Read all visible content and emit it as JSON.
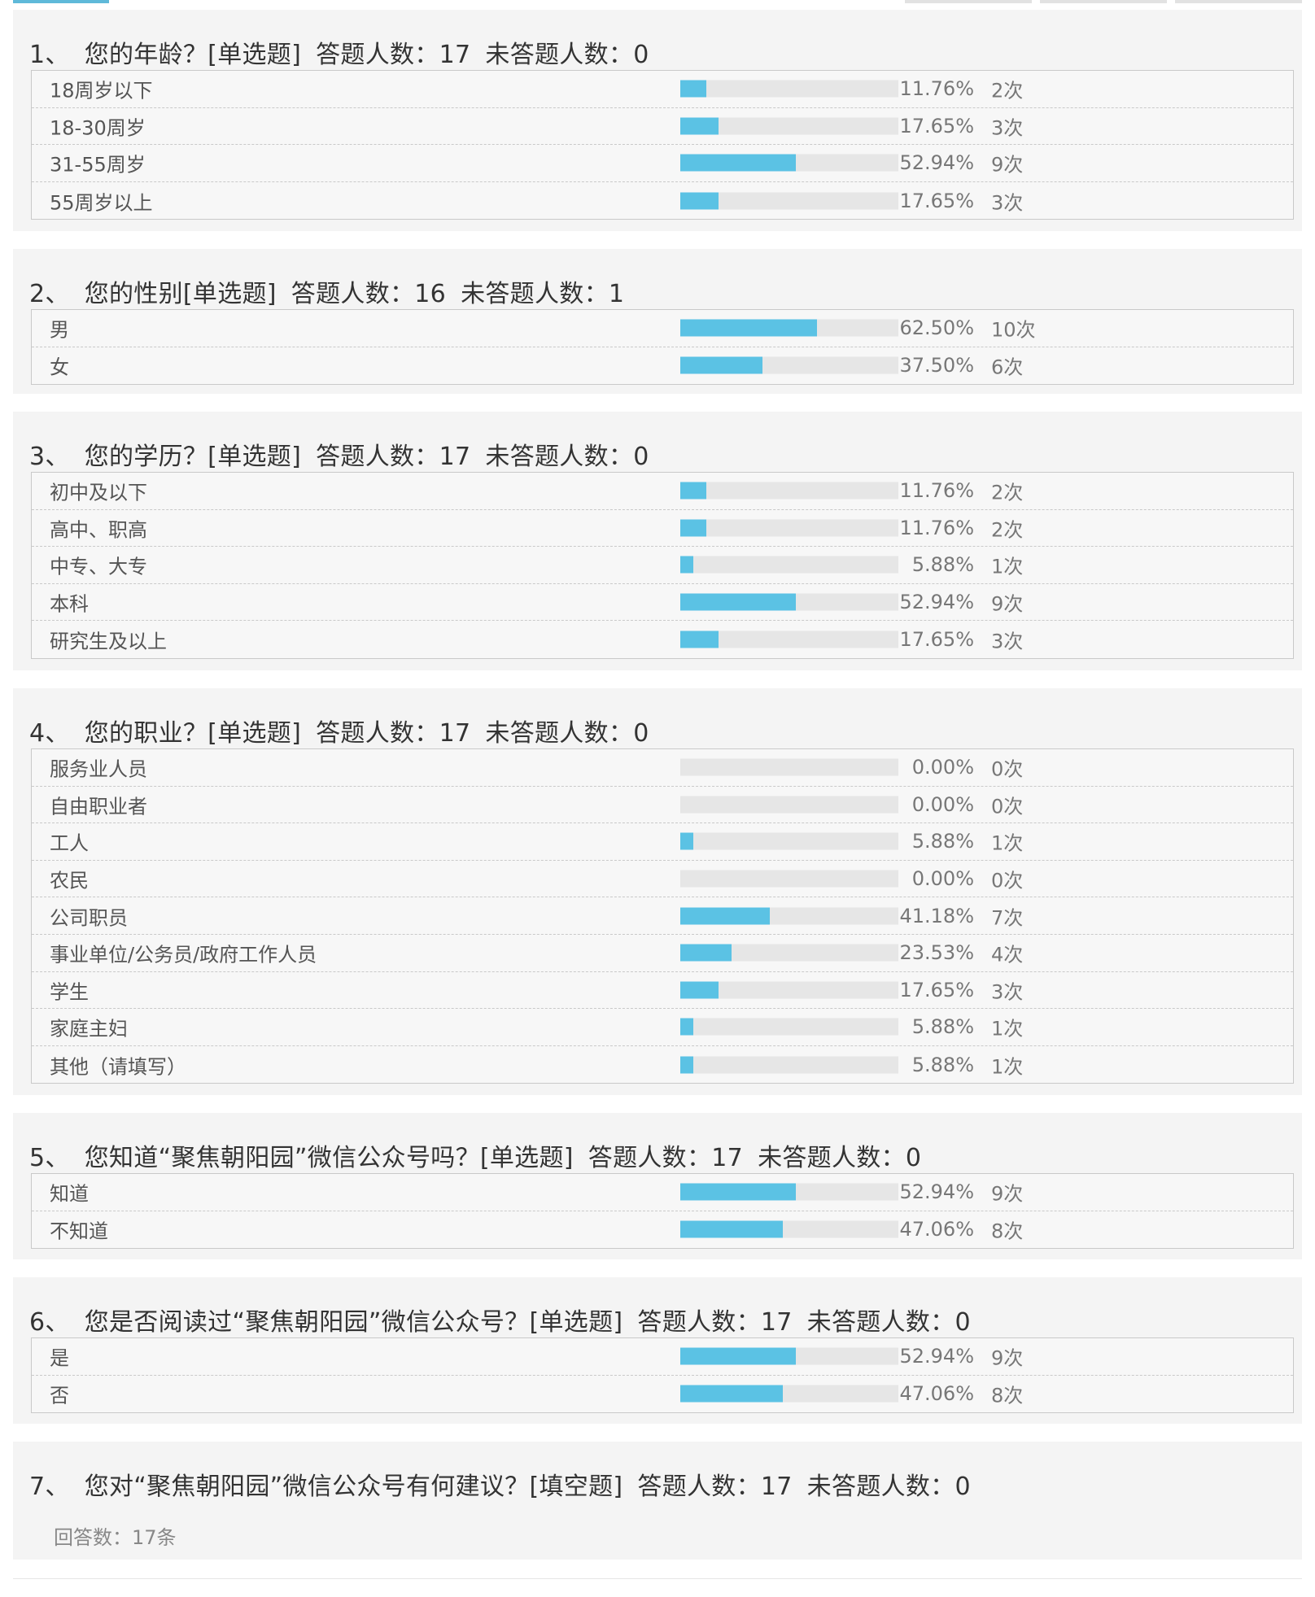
{
  "colors": {
    "bar": "#5bc2e4",
    "track": "#e6e6e6",
    "panel": "#f4f4f4"
  },
  "questions": [
    {
      "number": "1、",
      "text": "您的年龄？[单选题]",
      "answered": "答题人数：17",
      "unanswered": "未答题人数：0",
      "options": [
        {
          "label": "18周岁以下",
          "percent": "11.76%",
          "count": "2次",
          "ratio": 0.1176
        },
        {
          "label": "18-30周岁",
          "percent": "17.65%",
          "count": "3次",
          "ratio": 0.1765
        },
        {
          "label": "31-55周岁",
          "percent": "52.94%",
          "count": "9次",
          "ratio": 0.5294
        },
        {
          "label": "55周岁以上",
          "percent": "17.65%",
          "count": "3次",
          "ratio": 0.1765
        }
      ]
    },
    {
      "number": "2、",
      "text": "您的性别[单选题]",
      "answered": "答题人数：16",
      "unanswered": "未答题人数：1",
      "options": [
        {
          "label": "男",
          "percent": "62.50%",
          "count": "10次",
          "ratio": 0.625
        },
        {
          "label": "女",
          "percent": "37.50%",
          "count": "6次",
          "ratio": 0.375
        }
      ]
    },
    {
      "number": "3、",
      "text": "您的学历？[单选题]",
      "answered": "答题人数：17",
      "unanswered": "未答题人数：0",
      "options": [
        {
          "label": "初中及以下",
          "percent": "11.76%",
          "count": "2次",
          "ratio": 0.1176
        },
        {
          "label": "高中、职高",
          "percent": "11.76%",
          "count": "2次",
          "ratio": 0.1176
        },
        {
          "label": "中专、大专",
          "percent": "5.88%",
          "count": "1次",
          "ratio": 0.0588
        },
        {
          "label": "本科",
          "percent": "52.94%",
          "count": "9次",
          "ratio": 0.5294
        },
        {
          "label": "研究生及以上",
          "percent": "17.65%",
          "count": "3次",
          "ratio": 0.1765
        }
      ]
    },
    {
      "number": "4、",
      "text": "您的职业？[单选题]",
      "answered": "答题人数：17",
      "unanswered": "未答题人数：0",
      "options": [
        {
          "label": "服务业人员",
          "percent": "0.00%",
          "count": "0次",
          "ratio": 0
        },
        {
          "label": "自由职业者",
          "percent": "0.00%",
          "count": "0次",
          "ratio": 0
        },
        {
          "label": "工人",
          "percent": "5.88%",
          "count": "1次",
          "ratio": 0.0588
        },
        {
          "label": "农民",
          "percent": "0.00%",
          "count": "0次",
          "ratio": 0
        },
        {
          "label": "公司职员",
          "percent": "41.18%",
          "count": "7次",
          "ratio": 0.4118
        },
        {
          "label": "事业单位/公务员/政府工作人员",
          "percent": "23.53%",
          "count": "4次",
          "ratio": 0.2353
        },
        {
          "label": "学生",
          "percent": "17.65%",
          "count": "3次",
          "ratio": 0.1765
        },
        {
          "label": "家庭主妇",
          "percent": "5.88%",
          "count": "1次",
          "ratio": 0.0588
        },
        {
          "label": "其他（请填写）",
          "percent": "5.88%",
          "count": "1次",
          "ratio": 0.0588
        }
      ]
    },
    {
      "number": "5、",
      "text": "您知道“聚焦朝阳园”微信公众号吗？[单选题]",
      "answered": "答题人数：17",
      "unanswered": "未答题人数：0",
      "options": [
        {
          "label": "知道",
          "percent": "52.94%",
          "count": "9次",
          "ratio": 0.5294
        },
        {
          "label": "不知道",
          "percent": "47.06%",
          "count": "8次",
          "ratio": 0.4706
        }
      ]
    },
    {
      "number": "6、",
      "text": "您是否阅读过“聚焦朝阳园”微信公众号？[单选题]",
      "answered": "答题人数：17",
      "unanswered": "未答题人数：0",
      "options": [
        {
          "label": "是",
          "percent": "52.94%",
          "count": "9次",
          "ratio": 0.5294
        },
        {
          "label": "否",
          "percent": "47.06%",
          "count": "8次",
          "ratio": 0.4706
        }
      ]
    },
    {
      "number": "7、",
      "text": "您对“聚焦朝阳园”微信公众号有何建议？[填空题]",
      "answered": "答题人数：17",
      "unanswered": "未答题人数：0",
      "answer_count": "回答数：17条",
      "options": []
    }
  ]
}
